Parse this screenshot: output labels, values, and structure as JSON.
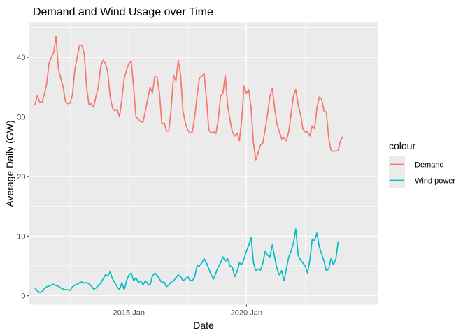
{
  "chart_data": {
    "type": "line",
    "title": "Demand and Wind Usage over Time",
    "xlabel": "Date",
    "ylabel": "Average Daily (GW)",
    "x_ticks": [
      {
        "label": "2015 Jan",
        "value": 2015.0
      },
      {
        "label": "2020 Jan",
        "value": 2020.0
      }
    ],
    "y_ticks": [
      0,
      10,
      20,
      30,
      40
    ],
    "xlim": [
      2010.75,
      2025.6
    ],
    "ylim": [
      -1.5,
      45.8
    ],
    "grid": true,
    "legend": {
      "title": "colour",
      "position": "right"
    },
    "series": [
      {
        "name": "Demand",
        "color": "#F8766D",
        "points": [
          [
            2011.0,
            32.0
          ],
          [
            2011.1,
            33.6
          ],
          [
            2011.2,
            32.5
          ],
          [
            2011.3,
            32.4
          ],
          [
            2011.4,
            33.8
          ],
          [
            2011.5,
            35.5
          ],
          [
            2011.6,
            39.0
          ],
          [
            2011.7,
            40.0
          ],
          [
            2011.8,
            40.8
          ],
          [
            2011.9,
            43.5
          ],
          [
            2012.0,
            38.0
          ],
          [
            2012.1,
            36.5
          ],
          [
            2012.2,
            35.0
          ],
          [
            2012.3,
            32.6
          ],
          [
            2012.4,
            32.2
          ],
          [
            2012.5,
            32.3
          ],
          [
            2012.6,
            33.8
          ],
          [
            2012.7,
            38.0
          ],
          [
            2012.8,
            40.0
          ],
          [
            2012.9,
            42.0
          ],
          [
            2013.0,
            42.0
          ],
          [
            2013.1,
            40.5
          ],
          [
            2013.2,
            35.0
          ],
          [
            2013.3,
            32.0
          ],
          [
            2013.4,
            32.2
          ],
          [
            2013.5,
            31.6
          ],
          [
            2013.6,
            33.5
          ],
          [
            2013.7,
            35.0
          ],
          [
            2013.8,
            38.5
          ],
          [
            2013.9,
            39.5
          ],
          [
            2014.0,
            39.0
          ],
          [
            2014.1,
            37.5
          ],
          [
            2014.2,
            33.5
          ],
          [
            2014.3,
            31.5
          ],
          [
            2014.4,
            31.0
          ],
          [
            2014.5,
            31.3
          ],
          [
            2014.6,
            30.0
          ],
          [
            2014.7,
            33.0
          ],
          [
            2014.8,
            36.5
          ],
          [
            2014.9,
            37.8
          ],
          [
            2015.0,
            39.0
          ],
          [
            2015.1,
            39.3
          ],
          [
            2015.2,
            35.0
          ],
          [
            2015.3,
            30.0
          ],
          [
            2015.4,
            29.6
          ],
          [
            2015.5,
            29.2
          ],
          [
            2015.6,
            29.1
          ],
          [
            2015.7,
            31.0
          ],
          [
            2015.8,
            33.0
          ],
          [
            2015.9,
            35.0
          ],
          [
            2016.0,
            34.0
          ],
          [
            2016.1,
            36.8
          ],
          [
            2016.2,
            36.6
          ],
          [
            2016.3,
            34.0
          ],
          [
            2016.4,
            28.8
          ],
          [
            2016.5,
            29.0
          ],
          [
            2016.6,
            27.6
          ],
          [
            2016.7,
            27.7
          ],
          [
            2016.8,
            31.5
          ],
          [
            2016.9,
            37.0
          ],
          [
            2017.0,
            36.0
          ],
          [
            2017.1,
            39.5
          ],
          [
            2017.2,
            37.0
          ],
          [
            2017.3,
            31.0
          ],
          [
            2017.4,
            29.0
          ],
          [
            2017.5,
            27.8
          ],
          [
            2017.6,
            27.3
          ],
          [
            2017.7,
            27.5
          ],
          [
            2017.8,
            30.0
          ],
          [
            2017.9,
            33.5
          ],
          [
            2018.0,
            36.5
          ],
          [
            2018.1,
            36.8
          ],
          [
            2018.2,
            37.3
          ],
          [
            2018.3,
            33.0
          ],
          [
            2018.4,
            27.8
          ],
          [
            2018.5,
            27.3
          ],
          [
            2018.6,
            27.5
          ],
          [
            2018.7,
            27.2
          ],
          [
            2018.8,
            29.5
          ],
          [
            2018.9,
            33.5
          ],
          [
            2019.0,
            34.0
          ],
          [
            2019.1,
            37.0
          ],
          [
            2019.2,
            32.0
          ],
          [
            2019.3,
            29.5
          ],
          [
            2019.4,
            27.5
          ],
          [
            2019.5,
            26.8
          ],
          [
            2019.6,
            27.2
          ],
          [
            2019.7,
            26.0
          ],
          [
            2019.8,
            29.5
          ],
          [
            2019.9,
            35.2
          ],
          [
            2020.0,
            34.0
          ],
          [
            2020.1,
            34.5
          ],
          [
            2020.2,
            31.5
          ],
          [
            2020.3,
            25.5
          ],
          [
            2020.4,
            22.8
          ],
          [
            2020.5,
            24.0
          ],
          [
            2020.6,
            25.3
          ],
          [
            2020.7,
            25.6
          ],
          [
            2020.8,
            28.0
          ],
          [
            2020.9,
            30.5
          ],
          [
            2021.0,
            33.5
          ],
          [
            2021.1,
            34.8
          ],
          [
            2021.2,
            31.5
          ],
          [
            2021.3,
            28.8
          ],
          [
            2021.4,
            27.5
          ],
          [
            2021.5,
            26.3
          ],
          [
            2021.6,
            26.5
          ],
          [
            2021.7,
            26.0
          ],
          [
            2021.8,
            27.5
          ],
          [
            2021.9,
            30.5
          ],
          [
            2022.0,
            33.5
          ],
          [
            2022.1,
            34.6
          ],
          [
            2022.2,
            32.0
          ],
          [
            2022.3,
            30.5
          ],
          [
            2022.4,
            28.0
          ],
          [
            2022.5,
            27.5
          ],
          [
            2022.6,
            27.5
          ],
          [
            2022.7,
            26.8
          ],
          [
            2022.8,
            28.5
          ],
          [
            2022.9,
            28.0
          ],
          [
            2023.0,
            31.5
          ],
          [
            2023.1,
            33.3
          ],
          [
            2023.2,
            33.0
          ],
          [
            2023.3,
            31.0
          ],
          [
            2023.4,
            30.8
          ],
          [
            2023.5,
            26.5
          ],
          [
            2023.6,
            24.4
          ],
          [
            2023.7,
            24.2
          ],
          [
            2023.8,
            24.3
          ],
          [
            2023.9,
            24.3
          ],
          [
            2024.0,
            26.0
          ],
          [
            2024.1,
            26.7
          ]
        ]
      },
      {
        "name": "Wind power",
        "color": "#00BFC4",
        "points": [
          [
            2011.0,
            1.3
          ],
          [
            2011.1,
            0.8
          ],
          [
            2011.2,
            0.5
          ],
          [
            2011.3,
            0.7
          ],
          [
            2011.4,
            1.2
          ],
          [
            2011.5,
            1.5
          ],
          [
            2011.6,
            1.6
          ],
          [
            2011.7,
            1.8
          ],
          [
            2011.8,
            1.9
          ],
          [
            2011.9,
            1.7
          ],
          [
            2012.0,
            1.6
          ],
          [
            2012.1,
            1.3
          ],
          [
            2012.2,
            1.1
          ],
          [
            2012.3,
            1.0
          ],
          [
            2012.4,
            1.0
          ],
          [
            2012.5,
            0.9
          ],
          [
            2012.6,
            1.5
          ],
          [
            2012.7,
            1.8
          ],
          [
            2012.8,
            1.9
          ],
          [
            2012.9,
            2.2
          ],
          [
            2013.0,
            2.3
          ],
          [
            2013.1,
            2.1
          ],
          [
            2013.2,
            2.2
          ],
          [
            2013.3,
            2.0
          ],
          [
            2013.4,
            1.6
          ],
          [
            2013.5,
            1.1
          ],
          [
            2013.6,
            1.3
          ],
          [
            2013.7,
            1.7
          ],
          [
            2013.8,
            2.1
          ],
          [
            2013.9,
            2.8
          ],
          [
            2014.0,
            3.5
          ],
          [
            2014.1,
            3.3
          ],
          [
            2014.2,
            4.0
          ],
          [
            2014.3,
            2.8
          ],
          [
            2014.4,
            2.2
          ],
          [
            2014.5,
            1.5
          ],
          [
            2014.6,
            1.0
          ],
          [
            2014.7,
            2.2
          ],
          [
            2014.8,
            1.0
          ],
          [
            2014.9,
            2.5
          ],
          [
            2015.0,
            3.5
          ],
          [
            2015.1,
            3.8
          ],
          [
            2015.2,
            2.5
          ],
          [
            2015.3,
            3.0
          ],
          [
            2015.4,
            2.2
          ],
          [
            2015.5,
            2.5
          ],
          [
            2015.6,
            1.8
          ],
          [
            2015.7,
            2.5
          ],
          [
            2015.8,
            2.0
          ],
          [
            2015.9,
            1.8
          ],
          [
            2016.0,
            3.3
          ],
          [
            2016.1,
            3.8
          ],
          [
            2016.2,
            3.4
          ],
          [
            2016.3,
            2.8
          ],
          [
            2016.4,
            2.2
          ],
          [
            2016.5,
            2.3
          ],
          [
            2016.6,
            1.5
          ],
          [
            2016.7,
            1.8
          ],
          [
            2016.8,
            2.3
          ],
          [
            2016.9,
            2.5
          ],
          [
            2017.0,
            3.0
          ],
          [
            2017.1,
            3.5
          ],
          [
            2017.2,
            3.2
          ],
          [
            2017.3,
            2.5
          ],
          [
            2017.4,
            2.8
          ],
          [
            2017.5,
            3.2
          ],
          [
            2017.6,
            2.6
          ],
          [
            2017.7,
            2.5
          ],
          [
            2017.8,
            3.2
          ],
          [
            2017.9,
            5.0
          ],
          [
            2018.0,
            5.0
          ],
          [
            2018.1,
            5.5
          ],
          [
            2018.2,
            6.2
          ],
          [
            2018.3,
            5.5
          ],
          [
            2018.4,
            4.5
          ],
          [
            2018.5,
            3.5
          ],
          [
            2018.6,
            2.8
          ],
          [
            2018.7,
            3.8
          ],
          [
            2018.8,
            4.8
          ],
          [
            2018.9,
            5.5
          ],
          [
            2019.0,
            6.5
          ],
          [
            2019.1,
            5.8
          ],
          [
            2019.2,
            6.2
          ],
          [
            2019.3,
            5.0
          ],
          [
            2019.4,
            4.8
          ],
          [
            2019.5,
            3.2
          ],
          [
            2019.6,
            4.0
          ],
          [
            2019.7,
            5.5
          ],
          [
            2019.8,
            5.2
          ],
          [
            2019.9,
            6.2
          ],
          [
            2020.0,
            7.5
          ],
          [
            2020.1,
            8.5
          ],
          [
            2020.2,
            9.8
          ],
          [
            2020.3,
            5.5
          ],
          [
            2020.4,
            4.2
          ],
          [
            2020.5,
            4.5
          ],
          [
            2020.6,
            4.3
          ],
          [
            2020.7,
            5.5
          ],
          [
            2020.8,
            7.5
          ],
          [
            2020.9,
            6.8
          ],
          [
            2021.0,
            6.5
          ],
          [
            2021.1,
            8.5
          ],
          [
            2021.2,
            6.5
          ],
          [
            2021.3,
            4.5
          ],
          [
            2021.4,
            3.5
          ],
          [
            2021.5,
            4.2
          ],
          [
            2021.6,
            2.5
          ],
          [
            2021.7,
            4.5
          ],
          [
            2021.8,
            6.5
          ],
          [
            2021.9,
            7.5
          ],
          [
            2022.0,
            8.8
          ],
          [
            2022.1,
            11.2
          ],
          [
            2022.2,
            6.8
          ],
          [
            2022.3,
            6.0
          ],
          [
            2022.4,
            5.5
          ],
          [
            2022.5,
            5.0
          ],
          [
            2022.6,
            3.8
          ],
          [
            2022.7,
            6.0
          ],
          [
            2022.8,
            9.5
          ],
          [
            2022.9,
            9.2
          ],
          [
            2023.0,
            10.5
          ],
          [
            2023.1,
            8.2
          ],
          [
            2023.2,
            7.0
          ],
          [
            2023.3,
            5.8
          ],
          [
            2023.4,
            4.2
          ],
          [
            2023.5,
            4.5
          ],
          [
            2023.6,
            6.3
          ],
          [
            2023.7,
            5.2
          ],
          [
            2023.8,
            6.0
          ],
          [
            2023.9,
            9.0
          ]
        ]
      }
    ]
  }
}
